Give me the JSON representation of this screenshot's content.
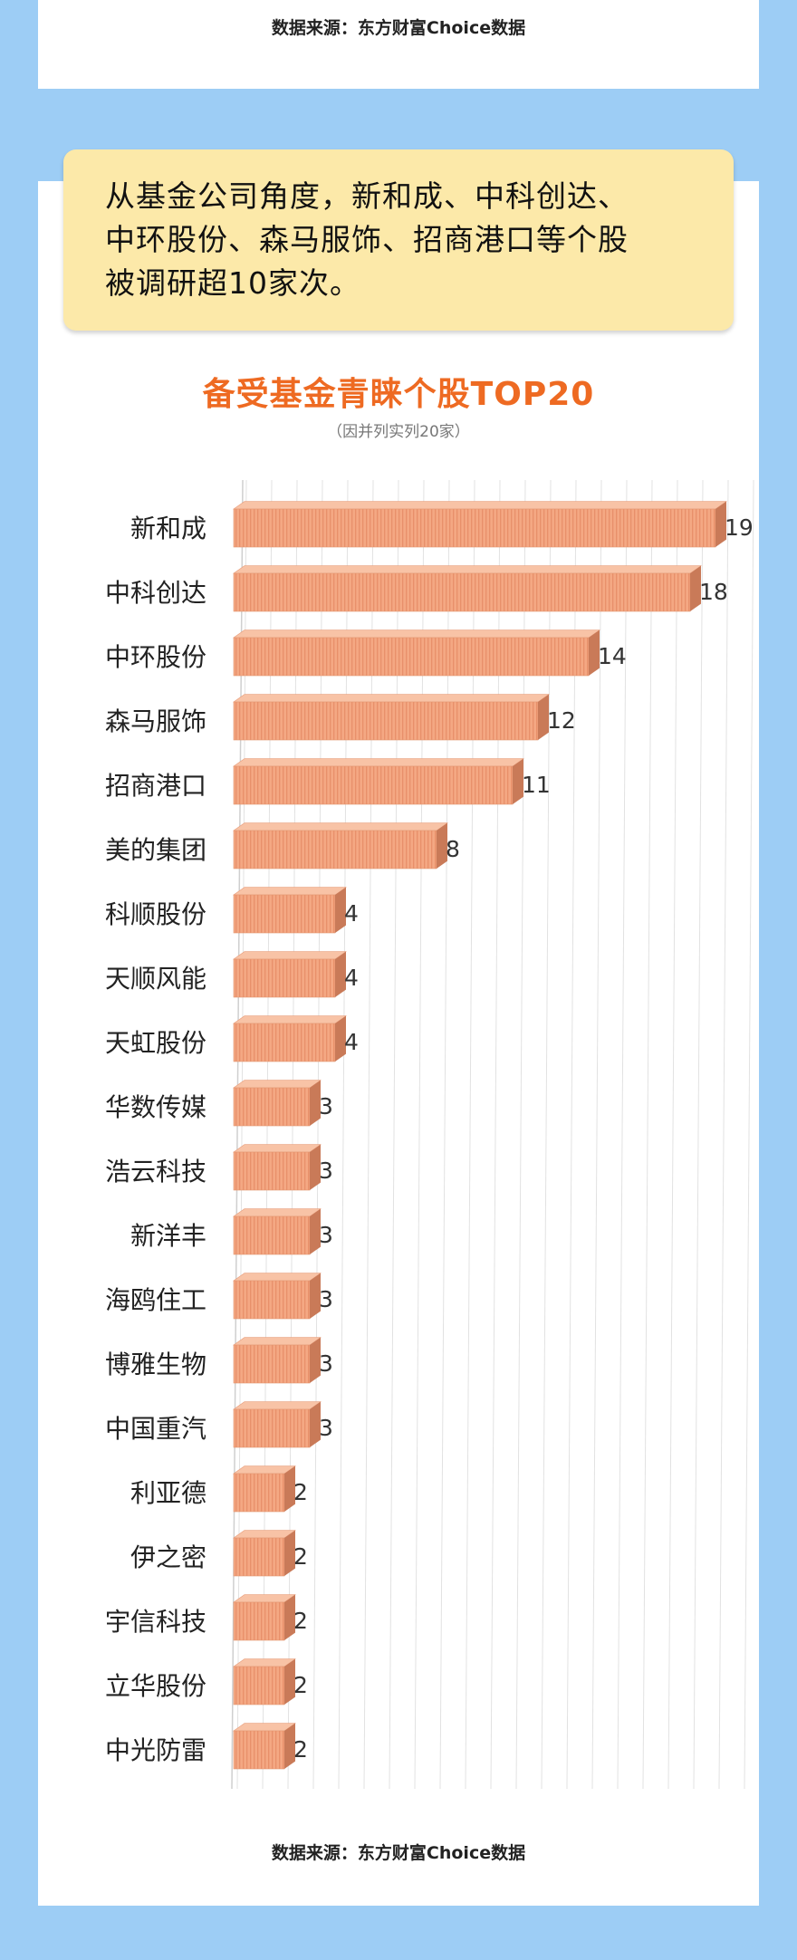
{
  "source_top": "数据来源：东方财富Choice数据",
  "callout": {
    "lines": [
      "从基金公司角度，新和成、中科创达、",
      "中环股份、森马服饰、招商港口等个股",
      "被调研超10家次。"
    ]
  },
  "source_bottom": "数据来源：东方财富Choice数据",
  "colors": {
    "background": "#9dcdf5",
    "callout": "#fce9a9",
    "title": "#ee6a22",
    "bar_front": "#f4a883",
    "bar_top": "#f8c3a6",
    "bar_side": "#c97a58"
  },
  "chart_data": {
    "type": "bar",
    "orientation": "horizontal",
    "style": "3d",
    "title": "备受基金青睐个股TOP20",
    "subtitle": "（因并列实列20家）",
    "categories": [
      "新和成",
      "中科创达",
      "中环股份",
      "森马服饰",
      "招商港口",
      "美的集团",
      "科顺股份",
      "天顺风能",
      "天虹股份",
      "华数传媒",
      "浩云科技",
      "新洋丰",
      "海鸥住工",
      "博雅生物",
      "中国重汽",
      "利亚德",
      "伊之密",
      "宇信科技",
      "立华股份",
      "中光防雷"
    ],
    "values": [
      19,
      18,
      14,
      12,
      11,
      8,
      4,
      4,
      4,
      3,
      3,
      3,
      3,
      3,
      3,
      2,
      2,
      2,
      2,
      2
    ],
    "xlim": [
      0,
      20
    ],
    "grid": true,
    "data_labels": true
  }
}
